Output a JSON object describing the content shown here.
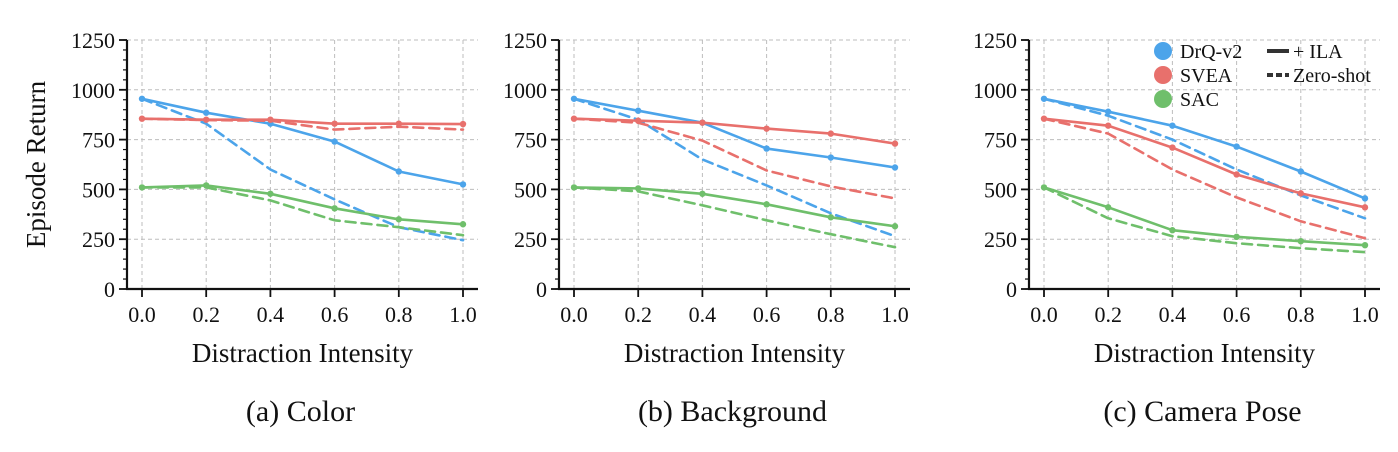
{
  "colors": {
    "DrQ-v2": "#4ca4ea",
    "SVEA": "#e8706c",
    "SAC": "#6fbf6b"
  },
  "legend": {
    "algorithms": [
      "DrQ-v2",
      "SVEA",
      "SAC"
    ],
    "styles": [
      {
        "label": "+ ILA",
        "dash": "solid"
      },
      {
        "label": "Zero-shot",
        "dash": "dashed"
      }
    ],
    "placement": "top-right of panel (c)"
  },
  "chart_data": [
    {
      "type": "line",
      "caption": "(a) Color",
      "xlabel": "Distraction Intensity",
      "ylabel": "Episode Return",
      "x": [
        0.0,
        0.2,
        0.4,
        0.6,
        0.8,
        1.0
      ],
      "xticks": [
        "0.0",
        "0.2",
        "0.4",
        "0.6",
        "0.8",
        "1.0"
      ],
      "yticks": [
        "0",
        "250",
        "500",
        "750",
        "1000",
        "1250"
      ],
      "ylim": [
        0,
        1250
      ],
      "grid": true,
      "series": [
        {
          "name": "DrQ-v2",
          "variant": "+ ILA",
          "values": [
            955,
            885,
            830,
            740,
            590,
            525
          ]
        },
        {
          "name": "DrQ-v2",
          "variant": "Zero-shot",
          "values": [
            955,
            830,
            600,
            450,
            310,
            245
          ]
        },
        {
          "name": "SVEA",
          "variant": "+ ILA",
          "values": [
            855,
            850,
            850,
            830,
            830,
            828
          ]
        },
        {
          "name": "SVEA",
          "variant": "Zero-shot",
          "values": [
            855,
            848,
            845,
            800,
            815,
            800
          ]
        },
        {
          "name": "SAC",
          "variant": "+ ILA",
          "values": [
            510,
            520,
            478,
            405,
            350,
            325
          ]
        },
        {
          "name": "SAC",
          "variant": "Zero-shot",
          "values": [
            510,
            510,
            445,
            345,
            310,
            270
          ]
        }
      ]
    },
    {
      "type": "line",
      "caption": "(b) Background",
      "xlabel": "Distraction Intensity",
      "ylabel": "",
      "x": [
        0.0,
        0.2,
        0.4,
        0.6,
        0.8,
        1.0
      ],
      "xticks": [
        "0.0",
        "0.2",
        "0.4",
        "0.6",
        "0.8",
        "1.0"
      ],
      "yticks": [
        "0",
        "250",
        "500",
        "750",
        "1000",
        "1250"
      ],
      "ylim": [
        0,
        1250
      ],
      "grid": true,
      "series": [
        {
          "name": "DrQ-v2",
          "variant": "+ ILA",
          "values": [
            955,
            895,
            835,
            705,
            660,
            610
          ]
        },
        {
          "name": "DrQ-v2",
          "variant": "Zero-shot",
          "values": [
            955,
            850,
            650,
            520,
            380,
            265
          ]
        },
        {
          "name": "SVEA",
          "variant": "+ ILA",
          "values": [
            855,
            845,
            835,
            805,
            780,
            730
          ]
        },
        {
          "name": "SVEA",
          "variant": "Zero-shot",
          "values": [
            855,
            835,
            745,
            595,
            515,
            455
          ]
        },
        {
          "name": "SAC",
          "variant": "+ ILA",
          "values": [
            510,
            505,
            478,
            425,
            360,
            315
          ]
        },
        {
          "name": "SAC",
          "variant": "Zero-shot",
          "values": [
            510,
            490,
            420,
            345,
            275,
            210
          ]
        }
      ]
    },
    {
      "type": "line",
      "caption": "(c) Camera Pose",
      "xlabel": "Distraction Intensity",
      "ylabel": "",
      "x": [
        0.0,
        0.2,
        0.4,
        0.6,
        0.8,
        1.0
      ],
      "xticks": [
        "0.0",
        "0.2",
        "0.4",
        "0.6",
        "0.8",
        "1.0"
      ],
      "yticks": [
        "0",
        "250",
        "500",
        "750",
        "1000",
        "1250"
      ],
      "ylim": [
        0,
        1250
      ],
      "grid": true,
      "series": [
        {
          "name": "DrQ-v2",
          "variant": "+ ILA",
          "values": [
            955,
            890,
            820,
            715,
            590,
            455
          ]
        },
        {
          "name": "DrQ-v2",
          "variant": "Zero-shot",
          "values": [
            955,
            870,
            750,
            600,
            470,
            355
          ]
        },
        {
          "name": "SVEA",
          "variant": "+ ILA",
          "values": [
            855,
            820,
            710,
            575,
            480,
            410
          ]
        },
        {
          "name": "SVEA",
          "variant": "Zero-shot",
          "values": [
            855,
            780,
            600,
            460,
            340,
            255
          ]
        },
        {
          "name": "SAC",
          "variant": "+ ILA",
          "values": [
            510,
            410,
            295,
            262,
            240,
            220
          ]
        },
        {
          "name": "SAC",
          "variant": "Zero-shot",
          "values": [
            510,
            355,
            265,
            230,
            205,
            185
          ]
        }
      ]
    }
  ]
}
